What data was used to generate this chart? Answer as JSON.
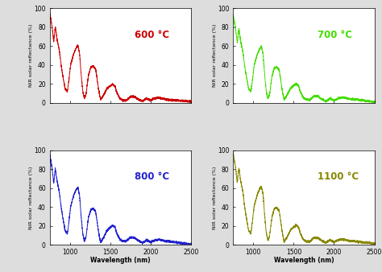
{
  "panels": [
    {
      "temp": "600 °C",
      "color": "#cc0000",
      "label_color": "#cc0000"
    },
    {
      "temp": "700 °C",
      "color": "#44dd00",
      "label_color": "#44dd00"
    },
    {
      "temp": "800 °C",
      "color": "#2222cc",
      "label_color": "#2222cc"
    },
    {
      "temp": "1100 °C",
      "color": "#888800",
      "label_color": "#888800"
    }
  ],
  "xlabel": "Wavelength (nm)",
  "ylabel": "NIR solar reflectance (%)",
  "xlim": [
    750,
    2500
  ],
  "ylim": [
    0,
    100
  ],
  "xticks": [
    1000,
    1500,
    2000,
    2500
  ],
  "yticks": [
    0,
    20,
    40,
    60,
    80,
    100
  ],
  "background": "#ffffff",
  "fig_bg": "#dddddd"
}
